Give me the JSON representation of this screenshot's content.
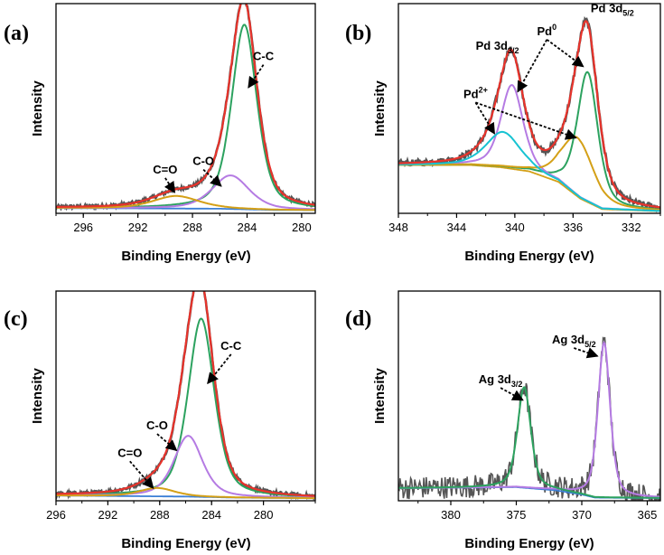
{
  "figure": {
    "panel_labels": [
      "(a)",
      "(b)",
      "(c)",
      "(d)"
    ]
  },
  "chart_data": [
    {
      "type": "line",
      "panel": "(a)",
      "xlabel": "Binding Energy (eV)",
      "ylabel": "Intensity",
      "xlim": [
        298,
        279
      ],
      "ylim": [
        0,
        100
      ],
      "xticks": [
        "296",
        "292",
        "288",
        "284",
        "280"
      ],
      "xtick_values": [
        296,
        292,
        288,
        284,
        280
      ],
      "colors": {
        "raw": "#555555",
        "envelope": "#e8332b",
        "cc": "#2ca25f",
        "co": "#b57be3",
        "coo": "#d4a017",
        "bg": "#3a7fd5"
      },
      "series": [
        {
          "id": "bg",
          "peaks": [],
          "baseline": [
            [
              298,
              2.5
            ],
            [
              286,
              2.2
            ],
            [
              282,
              1.6
            ],
            [
              279,
              1.5
            ]
          ]
        },
        {
          "id": "cc",
          "peaks": [
            {
              "center": 284.2,
              "height": 88,
              "width": 1.1
            }
          ],
          "baseline": [
            [
              298,
              2.5
            ],
            [
              286,
              2.2
            ],
            [
              282,
              1.6
            ],
            [
              279,
              1.5
            ]
          ]
        },
        {
          "id": "co",
          "peaks": [
            {
              "center": 285.2,
              "height": 16,
              "width": 1.6
            }
          ],
          "baseline": [
            [
              298,
              2.5
            ],
            [
              286,
              2.2
            ],
            [
              282,
              1.6
            ],
            [
              279,
              1.5
            ]
          ]
        },
        {
          "id": "coo",
          "peaks": [
            {
              "center": 289.2,
              "height": 6,
              "width": 2.0
            }
          ],
          "baseline": [
            [
              298,
              2.5
            ],
            [
              286,
              2.2
            ],
            [
              282,
              1.6
            ],
            [
              279,
              1.5
            ]
          ]
        }
      ],
      "annotations": [
        {
          "text": "C-C",
          "x": 282.8,
          "y": 73,
          "arrow_to": [
            283.9,
            60
          ]
        },
        {
          "text": "C-O",
          "x": 287.2,
          "y": 23,
          "arrow_to": [
            285.9,
            13
          ]
        },
        {
          "text": "C=O",
          "x": 290.0,
          "y": 19,
          "arrow_to": [
            289.3,
            10
          ]
        }
      ]
    },
    {
      "type": "line",
      "panel": "(b)",
      "xlabel": "Binding Energy (eV)",
      "ylabel": "Intensity",
      "xlim": [
        348,
        330
      ],
      "ylim": [
        0,
        100
      ],
      "xticks": [
        "348",
        "344",
        "340",
        "336",
        "332"
      ],
      "xtick_values": [
        348,
        344,
        340,
        336,
        332
      ],
      "colors": {
        "raw": "#555555",
        "envelope": "#e8332b",
        "pd0_52": "#2ca25f",
        "pd0_32": "#b57be3",
        "pd2_52": "#d4a017",
        "pd2_32": "#17c3d2",
        "bg": "#d4a017"
      },
      "series": [
        {
          "id": "bg",
          "peaks": [],
          "baseline": [
            [
              348,
              23
            ],
            [
              343,
              23
            ],
            [
              341,
              22
            ],
            [
              339,
              20
            ],
            [
              337,
              15
            ],
            [
              335.5,
              7
            ],
            [
              334,
              2
            ],
            [
              330,
              1
            ]
          ]
        },
        {
          "id": "pd0_52",
          "peaks": [
            {
              "center": 335.0,
              "height": 62,
              "width": 0.85
            }
          ],
          "baseline": [
            [
              348,
              23
            ],
            [
              343,
              23
            ],
            [
              341,
              22
            ],
            [
              339,
              20
            ],
            [
              337,
              15
            ],
            [
              335.5,
              7
            ],
            [
              334,
              2
            ],
            [
              330,
              1
            ]
          ]
        },
        {
          "id": "pd0_32",
          "peaks": [
            {
              "center": 340.2,
              "height": 40,
              "width": 0.9
            }
          ],
          "baseline": [
            [
              348,
              23
            ],
            [
              343,
              23
            ],
            [
              341,
              22
            ],
            [
              339,
              20
            ],
            [
              337,
              15
            ],
            [
              335.5,
              7
            ],
            [
              334,
              2
            ],
            [
              330,
              1
            ]
          ]
        },
        {
          "id": "pd2_52",
          "peaks": [
            {
              "center": 335.7,
              "height": 28,
              "width": 1.3
            }
          ],
          "baseline": [
            [
              348,
              23
            ],
            [
              343,
              23
            ],
            [
              341,
              22
            ],
            [
              339,
              20
            ],
            [
              337,
              15
            ],
            [
              335.5,
              7
            ],
            [
              334,
              2
            ],
            [
              330,
              1
            ]
          ]
        },
        {
          "id": "pd2_32",
          "peaks": [
            {
              "center": 340.8,
              "height": 17,
              "width": 1.4
            }
          ],
          "baseline": [
            [
              348,
              23
            ],
            [
              343,
              23
            ],
            [
              341,
              22
            ],
            [
              339,
              20
            ],
            [
              337,
              15
            ],
            [
              335.5,
              7
            ],
            [
              334,
              2
            ],
            [
              330,
              1
            ]
          ]
        }
      ],
      "annotations": [
        {
          "text": "Pd 3d",
          "sub": "5/2",
          "x": 333.3,
          "y": 96
        },
        {
          "text": "Pd 3d",
          "sub": "3/2",
          "x": 341.2,
          "y": 78
        },
        {
          "text": "Pd",
          "sup": "0",
          "x": 337.8,
          "y": 85,
          "arrows_to": [
            [
              339.8,
              58
            ],
            [
              335.3,
              70
            ]
          ]
        },
        {
          "text": "Pd",
          "sup": "2+",
          "x": 342.7,
          "y": 55,
          "arrows_to": [
            [
              341.4,
              38
            ],
            [
              335.8,
              36
            ]
          ]
        }
      ]
    },
    {
      "type": "line",
      "panel": "(c)",
      "xlabel": "Binding Energy (eV)",
      "ylabel": "Intensity",
      "xlim": [
        296,
        276
      ],
      "ylim": [
        0,
        100
      ],
      "xticks": [
        "296",
        "292",
        "288",
        "284",
        "280"
      ],
      "xtick_values": [
        296,
        292,
        288,
        284,
        280
      ],
      "colors": {
        "raw": "#555555",
        "envelope": "#e8332b",
        "cc": "#2ca25f",
        "co": "#b57be3",
        "coo": "#d4a017",
        "bg": "#3a7fd5"
      },
      "series": [
        {
          "id": "bg",
          "peaks": [],
          "baseline": [
            [
              296,
              2.5
            ],
            [
              286,
              2.0
            ],
            [
              282,
              1.5
            ],
            [
              276,
              1.2
            ]
          ]
        },
        {
          "id": "cc",
          "peaks": [
            {
              "center": 284.8,
              "height": 85,
              "width": 1.2
            }
          ],
          "baseline": [
            [
              296,
              2.5
            ],
            [
              286,
              2.0
            ],
            [
              282,
              1.5
            ],
            [
              276,
              1.2
            ]
          ]
        },
        {
          "id": "co",
          "peaks": [
            {
              "center": 285.8,
              "height": 29,
              "width": 1.3
            }
          ],
          "baseline": [
            [
              296,
              2.5
            ],
            [
              286,
              2.0
            ],
            [
              282,
              1.5
            ],
            [
              276,
              1.2
            ]
          ]
        },
        {
          "id": "coo",
          "peaks": [
            {
              "center": 288.2,
              "height": 4,
              "width": 1.6
            }
          ],
          "baseline": [
            [
              296,
              2.5
            ],
            [
              286,
              2.0
            ],
            [
              282,
              1.5
            ],
            [
              276,
              1.2
            ]
          ]
        }
      ],
      "annotations": [
        {
          "text": "C-C",
          "x": 282.5,
          "y": 72,
          "arrow_to": [
            284.3,
            56
          ]
        },
        {
          "text": "C-O",
          "x": 288.2,
          "y": 34,
          "arrow_to": [
            286.7,
            24
          ]
        },
        {
          "text": "C=O",
          "x": 290.3,
          "y": 21,
          "arrow_to": [
            288.5,
            6
          ]
        }
      ]
    },
    {
      "type": "line",
      "panel": "(d)",
      "xlabel": "Binding Energy (eV)",
      "ylabel": "Intensity",
      "xlim": [
        384,
        364
      ],
      "ylim": [
        0,
        100
      ],
      "xticks": [
        "380",
        "375",
        "370",
        "365"
      ],
      "xtick_values": [
        380,
        375,
        370,
        365
      ],
      "colors": {
        "raw": "#555555",
        "ag52": "#b57be3",
        "ag32": "#2ca25f",
        "bg": "#3a7fd5"
      },
      "series": [
        {
          "id": "bg",
          "peaks": [],
          "baseline": [
            [
              384,
              6
            ],
            [
              375,
              6.5
            ],
            [
              372,
              5
            ],
            [
              370,
              3
            ],
            [
              369,
              1.5
            ],
            [
              364,
              1.3
            ]
          ]
        },
        {
          "id": "ag52",
          "peaks": [
            {
              "center": 368.3,
              "height": 74,
              "width": 0.55
            }
          ],
          "baseline": [
            [
              384,
              6
            ],
            [
              375,
              6.5
            ],
            [
              372,
              5
            ],
            [
              370,
              3
            ],
            [
              369,
              1.5
            ],
            [
              364,
              1.3
            ]
          ]
        },
        {
          "id": "ag32",
          "peaks": [
            {
              "center": 374.4,
              "height": 48,
              "width": 0.6
            }
          ],
          "baseline": [
            [
              384,
              6
            ],
            [
              375,
              6.5
            ],
            [
              372,
              5
            ],
            [
              370,
              3
            ],
            [
              369,
              1.5
            ],
            [
              364,
              1.3
            ]
          ]
        }
      ],
      "annotations": [
        {
          "text": "Ag 3d",
          "sub": "5/2",
          "x": 370.6,
          "y": 75,
          "arrow_to": [
            368.8,
            69
          ]
        },
        {
          "text": "Ag 3d",
          "sub": "3/2",
          "x": 376.2,
          "y": 56,
          "arrow_to": [
            374.5,
            48
          ]
        }
      ]
    }
  ]
}
